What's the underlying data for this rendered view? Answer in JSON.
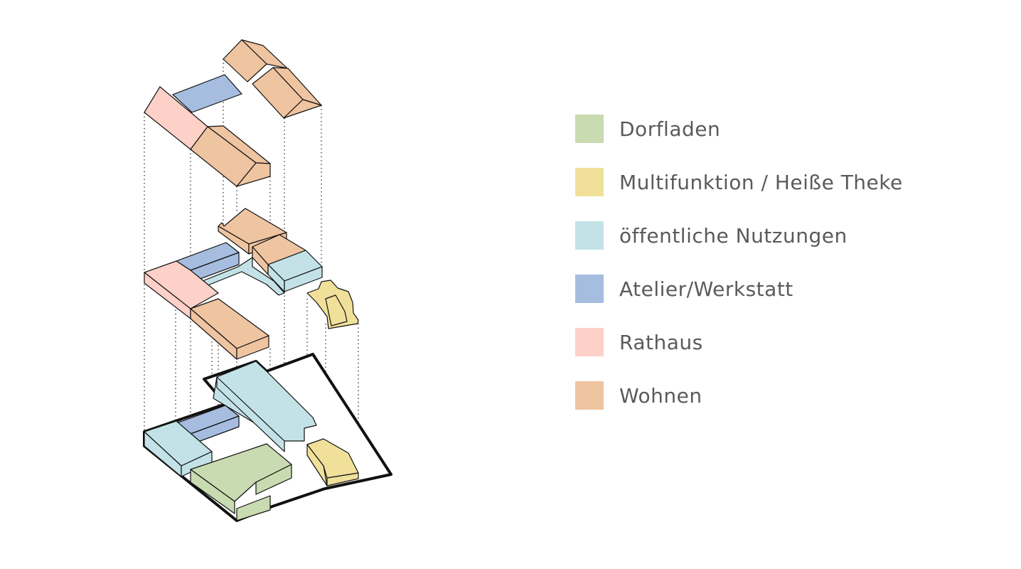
{
  "legend": [
    {
      "label": "Dorfladen",
      "color": "#c9dbb0"
    },
    {
      "label": "Multifunktion / Heiße Theke",
      "color": "#f0e09a"
    },
    {
      "label": "öffentliche Nutzungen",
      "color": "#c3e2e8"
    },
    {
      "label": "Atelier/Werkstatt",
      "color": "#a6bde0"
    },
    {
      "label": "Rathaus",
      "color": "#fdd0c8"
    },
    {
      "label": "Wohnen",
      "color": "#efc4a0"
    }
  ],
  "colors": {
    "dorfladen": "#c9dbb0",
    "multifunktion": "#f0e09a",
    "oeffentlich": "#c3e2e8",
    "atelier": "#a6bde0",
    "rathaus": "#fdd0c8",
    "wohnen": "#efc4a0"
  }
}
